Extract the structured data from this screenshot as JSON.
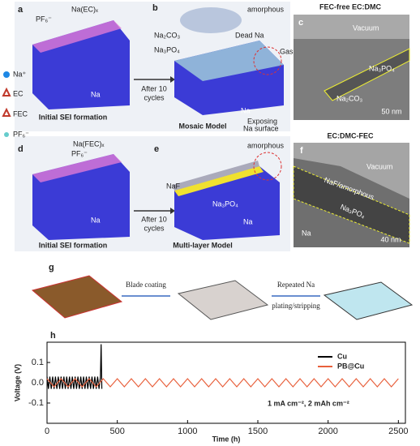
{
  "legend_left": [
    "Na⁺",
    "EC",
    "FEC",
    "PF₆⁻"
  ],
  "panel_a": {
    "label": "a",
    "texts": [
      "PF₆⁻",
      "Na(EC)ₓ",
      "Na"
    ],
    "caption": "Initial SEI formation"
  },
  "arrow_1": [
    "After 10",
    "cycles"
  ],
  "panel_b": {
    "label": "b",
    "texts": [
      "amorphous",
      "Na₂CO₃",
      "Dead Na",
      "Na₃PO₄",
      "Gas",
      "Na",
      "Exposing",
      "Na surface"
    ],
    "caption": "Mosaic Model"
  },
  "panel_c": {
    "label": "c",
    "header": "FEC-free EC:DMC",
    "texts": [
      "Vacuum",
      "Na₃PO₄",
      "Na₂CO₃"
    ],
    "scale": "50 nm"
  },
  "panel_d": {
    "label": "d",
    "texts": [
      "Na(FEC)ₓ",
      "PF₆⁻",
      "Na"
    ],
    "caption": "Initial SEI formation"
  },
  "arrow_2": [
    "After 10",
    "cycles"
  ],
  "panel_e": {
    "label": "e",
    "texts": [
      "amorphous",
      "NaF",
      "Na₃PO₄",
      "Na"
    ],
    "caption": "Multi-layer Model"
  },
  "panel_f": {
    "label": "f",
    "header": "EC:DMC-FEC",
    "texts": [
      "Vacuum",
      "NaF/amorphous",
      "Na₃PO₄",
      "Na"
    ],
    "scale": "40 nm"
  },
  "panel_g": {
    "label": "g",
    "step_1": "Blade coating",
    "step_2": [
      "Repeated Na",
      "plating/stripping"
    ]
  },
  "chart_data": {
    "type": "line",
    "label": "h",
    "x_label": "Time (h)",
    "y_label": "Voltage (V)",
    "annotation": "1 mA cm⁻², 2 mAh cm⁻²",
    "legend": "upper right",
    "xlim": [
      0,
      2550
    ],
    "xticks": [
      0,
      500,
      1000,
      1500,
      2000,
      2500
    ],
    "ylim": [
      -0.2,
      0.2
    ],
    "yticks": [
      -0.1,
      {
        "value": 0,
        "label": "0.0"
      },
      0.1
    ],
    "series": [
      {
        "name": "Cu",
        "color": "#000000",
        "x": [
          0,
          10,
          20,
          30,
          40,
          50,
          60,
          70,
          80,
          90,
          100,
          110,
          120,
          130,
          140,
          150,
          160,
          170,
          180,
          190,
          200,
          210,
          220,
          230,
          240,
          250,
          260,
          270,
          280,
          290,
          300,
          310,
          320,
          330,
          340,
          350,
          360,
          370,
          380,
          385,
          390
        ],
        "values": [
          0.03,
          -0.03,
          0.03,
          -0.03,
          0.03,
          -0.03,
          0.03,
          -0.03,
          0.03,
          -0.03,
          0.03,
          -0.03,
          0.03,
          -0.03,
          0.03,
          -0.03,
          0.03,
          -0.03,
          0.03,
          -0.03,
          0.03,
          -0.03,
          0.03,
          -0.03,
          0.03,
          -0.03,
          0.03,
          -0.03,
          0.03,
          -0.03,
          0.03,
          -0.03,
          0.03,
          -0.03,
          0.03,
          -0.03,
          0.03,
          -0.03,
          0.03,
          0.19,
          -0.03
        ]
      },
      {
        "name": "PB@Cu",
        "color": "#e8603c",
        "x": [
          0,
          50,
          100,
          150,
          200,
          250,
          300,
          350,
          400,
          450,
          500,
          550,
          600,
          650,
          700,
          750,
          800,
          850,
          900,
          950,
          1000,
          1050,
          1100,
          1150,
          1200,
          1250,
          1300,
          1350,
          1400,
          1450,
          1500,
          1550,
          1600,
          1650,
          1700,
          1750,
          1800,
          1850,
          1900,
          1950,
          2000,
          2050,
          2100,
          2150,
          2200,
          2250,
          2300,
          2350,
          2400,
          2450,
          2500
        ],
        "values": [
          0.02,
          -0.02,
          0.02,
          -0.02,
          0.02,
          -0.02,
          0.02,
          -0.02,
          0.02,
          -0.02,
          0.02,
          -0.02,
          0.02,
          -0.02,
          0.02,
          -0.02,
          0.02,
          -0.02,
          0.02,
          -0.02,
          0.02,
          -0.02,
          0.02,
          -0.02,
          0.02,
          -0.02,
          0.02,
          -0.02,
          0.02,
          -0.02,
          0.02,
          -0.02,
          0.02,
          -0.02,
          0.02,
          -0.02,
          0.02,
          -0.02,
          0.02,
          -0.02,
          0.02,
          -0.02,
          0.02,
          -0.02,
          0.02,
          -0.02,
          0.02,
          -0.02,
          0.02,
          -0.02,
          0.02
        ]
      }
    ]
  }
}
